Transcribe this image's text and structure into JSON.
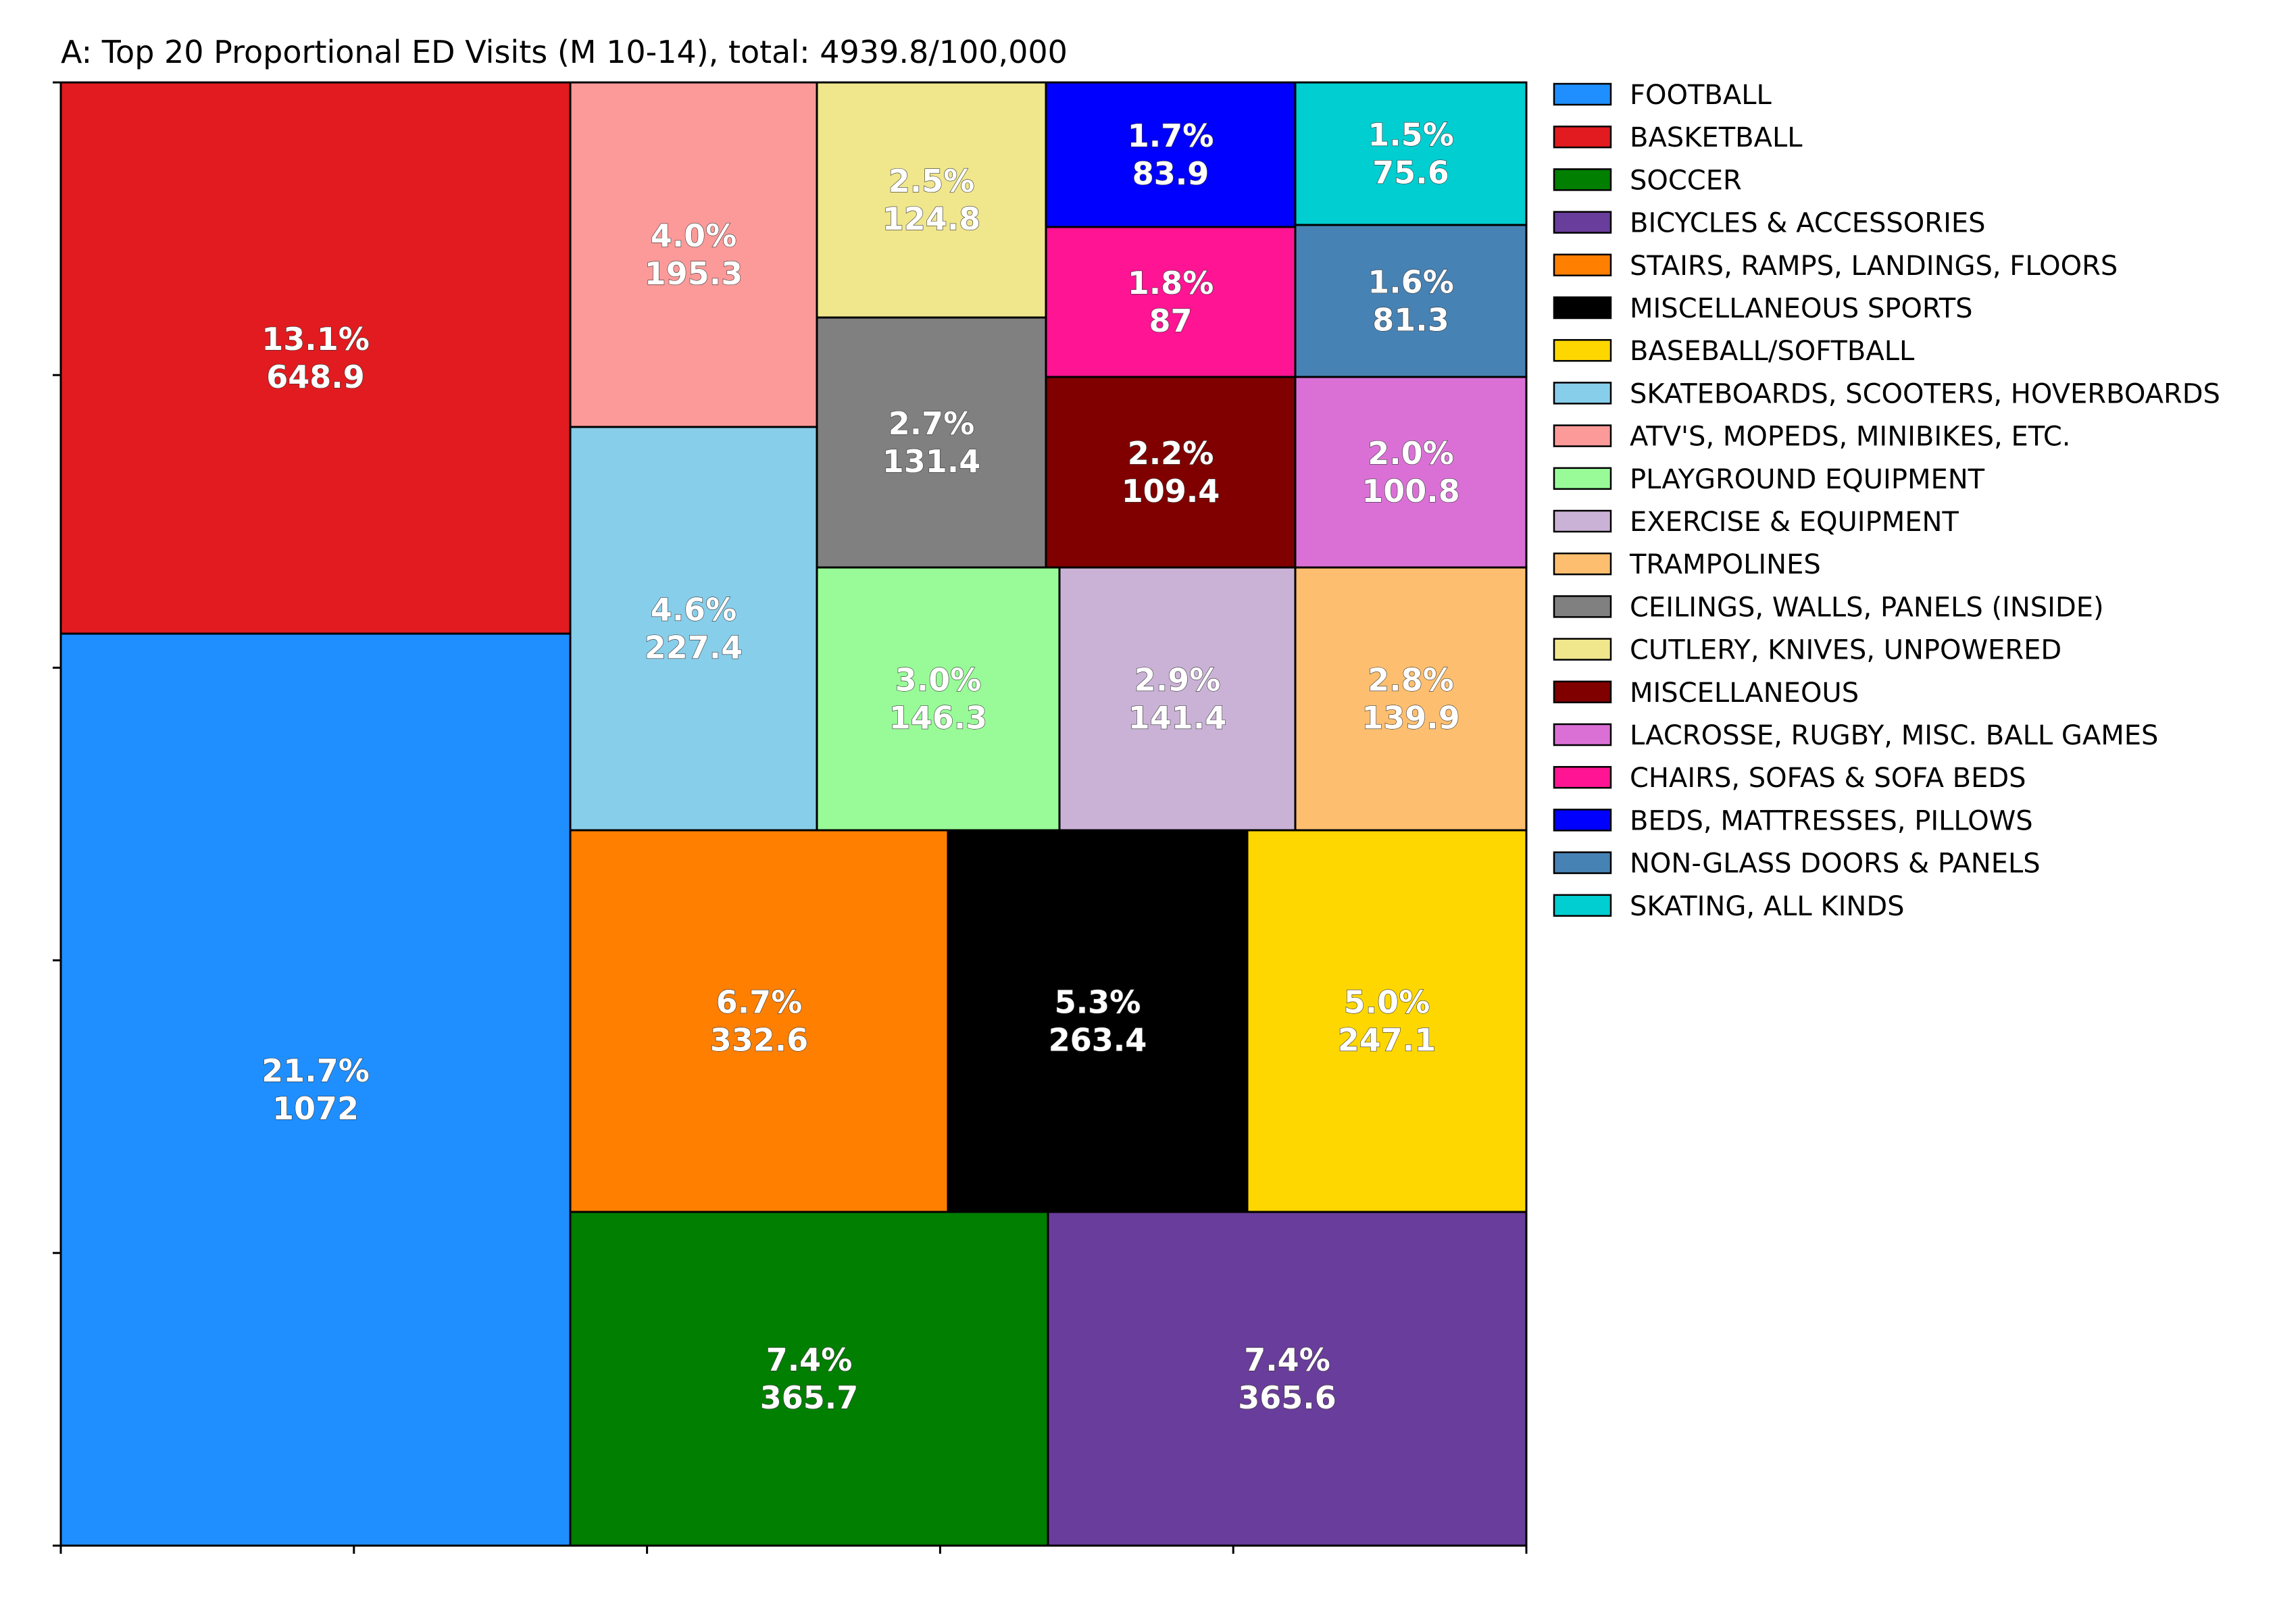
{
  "chart_data": {
    "type": "treemap",
    "title": "A: Top 20 Proportional ED Visits (M 10-14), total: 4939.8/100,000",
    "xlabel": "",
    "ylabel": "",
    "tick_labels": false,
    "legend_position": "right",
    "items": [
      {
        "name": "FOOTBALL",
        "pct": "21.7%",
        "value": "1072",
        "color": "#1f8fff"
      },
      {
        "name": "BASKETBALL",
        "pct": "13.1%",
        "value": "648.9",
        "color": "#e11b1f"
      },
      {
        "name": "SOCCER",
        "pct": "7.4%",
        "value": "365.7",
        "color": "#007f00"
      },
      {
        "name": "BICYCLES & ACCESSORIES",
        "pct": "7.4%",
        "value": "365.6",
        "color": "#693d9b"
      },
      {
        "name": "STAIRS, RAMPS, LANDINGS, FLOORS",
        "pct": "6.7%",
        "value": "332.6",
        "color": "#ff7f00"
      },
      {
        "name": "MISCELLANEOUS SPORTS",
        "pct": "5.3%",
        "value": "263.4",
        "color": "#000000"
      },
      {
        "name": "BASEBALL/SOFTBALL",
        "pct": "5.0%",
        "value": "247.1",
        "color": "#ffd700"
      },
      {
        "name": "SKATEBOARDS, SCOOTERS, HOVERBOARDS",
        "pct": "4.6%",
        "value": "227.4",
        "color": "#87ceea"
      },
      {
        "name": "ATV'S, MOPEDS, MINIBIKES, ETC.",
        "pct": "4.0%",
        "value": "195.3",
        "color": "#fb9a99"
      },
      {
        "name": "PLAYGROUND EQUIPMENT",
        "pct": "3.0%",
        "value": "146.3",
        "color": "#98fb98"
      },
      {
        "name": "EXERCISE & EQUIPMENT",
        "pct": "2.9%",
        "value": "141.4",
        "color": "#cab2d6"
      },
      {
        "name": "TRAMPOLINES",
        "pct": "2.8%",
        "value": "139.9",
        "color": "#fdbf6f"
      },
      {
        "name": "CEILINGS, WALLS, PANELS (INSIDE)",
        "pct": "2.7%",
        "value": "131.4",
        "color": "#808080"
      },
      {
        "name": "CUTLERY, KNIVES, UNPOWERED",
        "pct": "2.5%",
        "value": "124.8",
        "color": "#f0e68c"
      },
      {
        "name": "MISCELLANEOUS",
        "pct": "2.2%",
        "value": "109.4",
        "color": "#800000"
      },
      {
        "name": "LACROSSE, RUGBY, MISC. BALL GAMES",
        "pct": "2.0%",
        "value": "100.8",
        "color": "#da70d6"
      },
      {
        "name": "CHAIRS, SOFAS & SOFA BEDS",
        "pct": "1.8%",
        "value": "87",
        "color": "#ff1493"
      },
      {
        "name": "BEDS, MATTRESSES, PILLOWS",
        "pct": "1.7%",
        "value": "83.9",
        "color": "#0000ff"
      },
      {
        "name": "NON-GLASS DOORS & PANELS",
        "pct": "1.6%",
        "value": "81.3",
        "color": "#4682b4"
      },
      {
        "name": "SKATING, ALL KINDS",
        "pct": "1.5%",
        "value": "75.6",
        "color": "#00ced1"
      }
    ]
  }
}
